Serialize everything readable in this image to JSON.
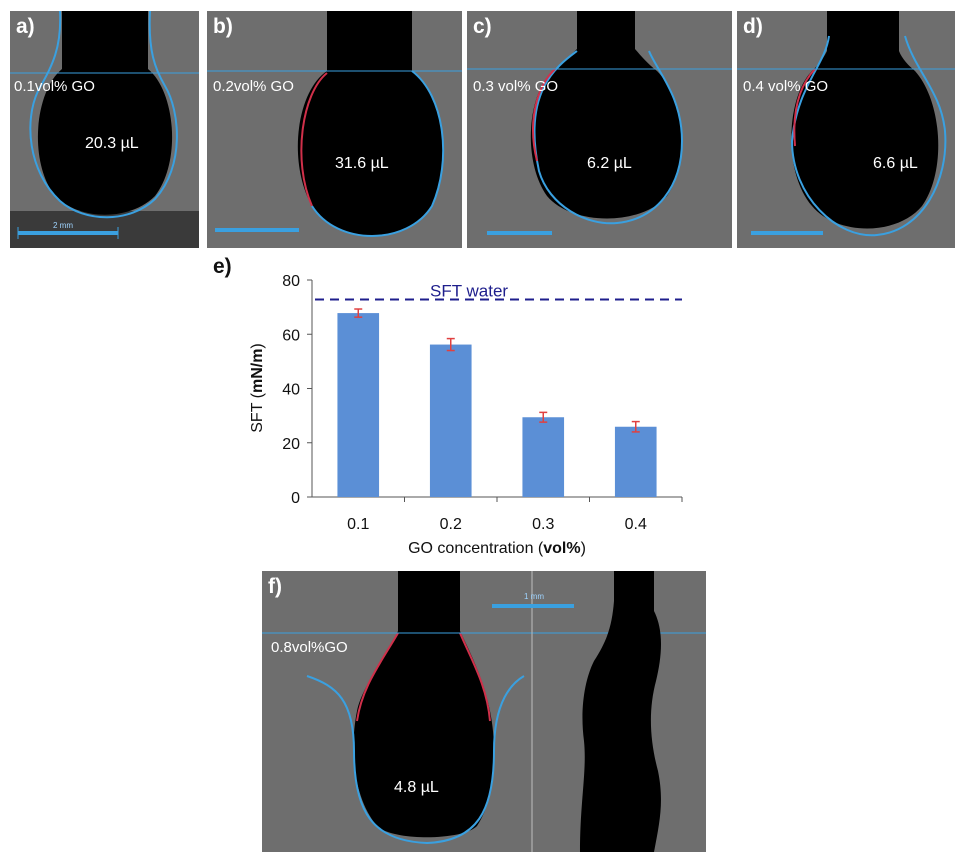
{
  "panels": [
    {
      "label": "a)",
      "concentration": "0.1vol% GO",
      "volume": "20.3 µL",
      "scale": "2 mm"
    },
    {
      "label": "b)",
      "concentration": "0.2vol% GO",
      "volume": "31.6 µL"
    },
    {
      "label": "c)",
      "concentration": "0.3 vol% GO",
      "volume": "6.2 µL"
    },
    {
      "label": "d)",
      "concentration": "0.4 vol% GO",
      "volume": "6.6 µL"
    },
    {
      "label": "f)",
      "concentration": "0.8vol%GO",
      "volume": "4.8 µL",
      "scale": "1 mm"
    }
  ],
  "chart_label": "e)",
  "chart_data": {
    "type": "bar",
    "categories": [
      "0.1",
      "0.2",
      "0.3",
      "0.4"
    ],
    "values": [
      67.8,
      56.2,
      29.4,
      25.9
    ],
    "errors": [
      1.5,
      2.2,
      1.8,
      1.9
    ],
    "xlabel_prefix": "GO concentration (",
    "xlabel_bold": "vol%",
    "xlabel_suffix": ")",
    "ylabel_prefix": "SFT (",
    "ylabel_bold": "mN/m",
    "ylabel_suffix": ")",
    "ylim": [
      0,
      80
    ],
    "yticks": [
      0,
      20,
      40,
      60,
      80
    ],
    "reference_line": {
      "label": "SFT water",
      "value": 72.8
    },
    "grid": false,
    "colors": {
      "bar": "#5b8fd6",
      "error": "#e04040",
      "reference": "#1e1e8c"
    }
  }
}
